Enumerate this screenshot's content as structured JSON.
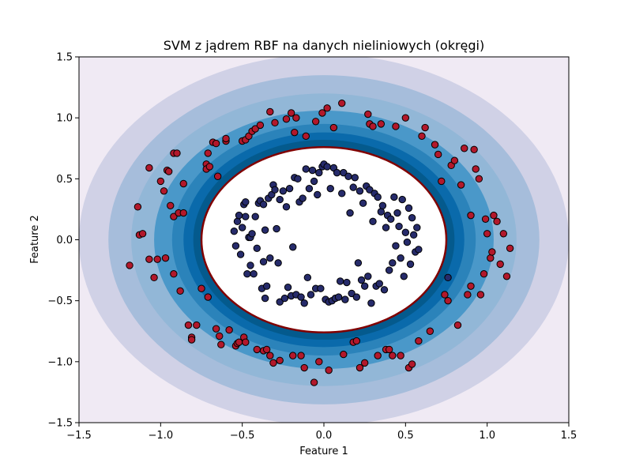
{
  "chart_data": {
    "type": "scatter",
    "title": "SVM z jądrem RBF na danych nieliniowych (okręgi)",
    "xlabel": "Feature 1",
    "ylabel": "Feature 2",
    "xlim": [
      -1.5,
      1.5
    ],
    "ylim": [
      -1.5,
      1.5
    ],
    "xticks": [
      "−1.5",
      "−1.0",
      "−0.5",
      "0.0",
      "0.5",
      "1.0",
      "1.5"
    ],
    "yticks": [
      "−1.5",
      "−1.0",
      "−0.5",
      "0.0",
      "0.5",
      "1.0",
      "1.5"
    ],
    "grid": false,
    "decision_boundary": {
      "cx": 0.0,
      "cy": 0.0,
      "rx": 0.75,
      "ry": 0.76,
      "color": "#800000"
    },
    "contour_levels": [
      {
        "rx": 1.55,
        "ry": 1.57,
        "color": "#f0eaf4"
      },
      {
        "rx": 1.5,
        "ry": 1.52,
        "color": "#d0d1e6"
      },
      {
        "rx": 1.32,
        "ry": 1.35,
        "color": "#a6bddb"
      },
      {
        "rx": 1.18,
        "ry": 1.2,
        "color": "#92b7d7"
      },
      {
        "rx": 1.04,
        "ry": 1.06,
        "color": "#4a98c9"
      },
      {
        "rx": 0.93,
        "ry": 0.95,
        "color": "#2b83ba"
      },
      {
        "rx": 0.86,
        "ry": 0.88,
        "color": "#0a6aab"
      },
      {
        "rx": 0.8,
        "ry": 0.82,
        "color": "#045a8d"
      },
      {
        "rx": 0.75,
        "ry": 0.76,
        "color": "#ffffff"
      }
    ],
    "series": [
      {
        "class": "outer",
        "color": "#b2182b",
        "points": [
          [
            -1.19,
            -0.21
          ],
          [
            -1.14,
            0.27
          ],
          [
            -1.13,
            0.04
          ],
          [
            -1.11,
            0.05
          ],
          [
            -1.07,
            0.59
          ],
          [
            -1.07,
            -0.16
          ],
          [
            -1.04,
            -0.31
          ],
          [
            -1.02,
            -0.16
          ],
          [
            -1.0,
            0.48
          ],
          [
            -0.98,
            0.4
          ],
          [
            -0.97,
            -0.15
          ],
          [
            -0.96,
            0.57
          ],
          [
            -0.95,
            0.56
          ],
          [
            -0.94,
            0.28
          ],
          [
            -0.92,
            0.19
          ],
          [
            -0.92,
            0.71
          ],
          [
            -0.92,
            -0.28
          ],
          [
            -0.9,
            0.71
          ],
          [
            -0.89,
            0.22
          ],
          [
            -0.88,
            -0.42
          ],
          [
            -0.86,
            0.22
          ],
          [
            -0.86,
            0.46
          ],
          [
            -0.83,
            -0.7
          ],
          [
            -0.81,
            -0.8
          ],
          [
            -0.81,
            -0.82
          ],
          [
            -0.78,
            -0.7
          ],
          [
            -0.75,
            -0.4
          ],
          [
            -0.72,
            0.62
          ],
          [
            -0.72,
            0.58
          ],
          [
            -0.71,
            -0.47
          ],
          [
            -0.71,
            0.71
          ],
          [
            -0.7,
            0.6
          ],
          [
            -0.68,
            0.8
          ],
          [
            -0.66,
            0.79
          ],
          [
            -0.66,
            -0.73
          ],
          [
            -0.65,
            0.52
          ],
          [
            -0.64,
            -0.79
          ],
          [
            -0.63,
            -0.86
          ],
          [
            -0.6,
            0.81
          ],
          [
            -0.6,
            0.83
          ],
          [
            -0.58,
            -0.74
          ],
          [
            -0.54,
            -0.87
          ],
          [
            -0.53,
            -0.85
          ],
          [
            -0.52,
            -0.84
          ],
          [
            -0.5,
            0.81
          ],
          [
            -0.49,
            -0.8
          ],
          [
            -0.48,
            0.82
          ],
          [
            -0.48,
            -0.84
          ],
          [
            -0.46,
            0.85
          ],
          [
            -0.44,
            0.89
          ],
          [
            -0.42,
            0.91
          ],
          [
            -0.41,
            -0.9
          ],
          [
            -0.39,
            0.94
          ],
          [
            -0.37,
            -0.91
          ],
          [
            -0.35,
            -0.9
          ],
          [
            -0.33,
            -0.95
          ],
          [
            -0.33,
            1.05
          ],
          [
            -0.31,
            -1.01
          ],
          [
            -0.3,
            0.96
          ],
          [
            -0.27,
            -0.99
          ],
          [
            -0.23,
            0.99
          ],
          [
            -0.2,
            1.04
          ],
          [
            -0.19,
            -0.95
          ],
          [
            -0.18,
            0.88
          ],
          [
            -0.17,
            1.0
          ],
          [
            -0.14,
            -0.95
          ],
          [
            -0.12,
            -1.05
          ],
          [
            -0.11,
            0.85
          ],
          [
            -0.06,
            -1.17
          ],
          [
            -0.05,
            0.97
          ],
          [
            -0.03,
            -1.0
          ],
          [
            -0.01,
            1.04
          ],
          [
            0.02,
            1.08
          ],
          [
            0.03,
            -1.07
          ],
          [
            0.06,
            0.92
          ],
          [
            0.11,
            1.12
          ],
          [
            0.12,
            -0.94
          ],
          [
            0.18,
            -0.84
          ],
          [
            0.2,
            -0.83
          ],
          [
            0.22,
            -1.05
          ],
          [
            0.25,
            -1.01
          ],
          [
            0.27,
            1.03
          ],
          [
            0.28,
            0.95
          ],
          [
            0.3,
            0.93
          ],
          [
            0.33,
            -0.95
          ],
          [
            0.35,
            0.95
          ],
          [
            0.38,
            -0.9
          ],
          [
            0.4,
            -0.9
          ],
          [
            0.42,
            -0.95
          ],
          [
            0.44,
            0.93
          ],
          [
            0.47,
            -0.95
          ],
          [
            0.5,
            1.0
          ],
          [
            0.52,
            -1.05
          ],
          [
            0.54,
            -1.02
          ],
          [
            0.58,
            -0.83
          ],
          [
            0.6,
            0.85
          ],
          [
            0.62,
            0.92
          ],
          [
            0.65,
            -0.75
          ],
          [
            0.68,
            0.78
          ],
          [
            0.7,
            0.7
          ],
          [
            0.72,
            0.48
          ],
          [
            0.74,
            -0.45
          ],
          [
            0.76,
            -0.5
          ],
          [
            0.78,
            0.61
          ],
          [
            0.8,
            0.65
          ],
          [
            0.82,
            -0.7
          ],
          [
            0.84,
            0.45
          ],
          [
            0.86,
            0.75
          ],
          [
            0.88,
            -0.45
          ],
          [
            0.9,
            -0.38
          ],
          [
            0.9,
            0.2
          ],
          [
            0.92,
            0.74
          ],
          [
            0.93,
            0.58
          ],
          [
            0.95,
            0.5
          ],
          [
            0.96,
            -0.45
          ],
          [
            0.98,
            -0.28
          ],
          [
            0.99,
            0.17
          ],
          [
            1.0,
            0.05
          ],
          [
            1.02,
            -0.15
          ],
          [
            1.03,
            -0.1
          ],
          [
            1.04,
            0.2
          ],
          [
            1.06,
            0.15
          ],
          [
            1.08,
            -0.2
          ],
          [
            1.1,
            0.05
          ],
          [
            1.12,
            -0.3
          ],
          [
            1.14,
            -0.07
          ]
        ]
      },
      {
        "class": "inner",
        "color": "#262b6b",
        "points": [
          [
            -0.55,
            0.07
          ],
          [
            -0.54,
            -0.05
          ],
          [
            -0.53,
            0.15
          ],
          [
            -0.52,
            0.2
          ],
          [
            -0.51,
            -0.12
          ],
          [
            -0.5,
            0.1
          ],
          [
            -0.49,
            0.29
          ],
          [
            -0.48,
            0.31
          ],
          [
            -0.48,
            0.19
          ],
          [
            -0.47,
            -0.28
          ],
          [
            -0.46,
            0.02
          ],
          [
            -0.45,
            -0.21
          ],
          [
            -0.45,
            0.02
          ],
          [
            -0.44,
            0.05
          ],
          [
            -0.43,
            -0.28
          ],
          [
            -0.42,
            0.19
          ],
          [
            -0.41,
            -0.07
          ],
          [
            -0.4,
            0.3
          ],
          [
            -0.39,
            0.32
          ],
          [
            -0.38,
            -0.4
          ],
          [
            -0.37,
            0.29
          ],
          [
            -0.37,
            -0.18
          ],
          [
            -0.36,
            -0.48
          ],
          [
            -0.36,
            0.08
          ],
          [
            -0.35,
            -0.38
          ],
          [
            -0.34,
            0.34
          ],
          [
            -0.33,
            -0.15
          ],
          [
            -0.32,
            0.37
          ],
          [
            -0.31,
            0.45
          ],
          [
            -0.3,
            0.41
          ],
          [
            -0.29,
            0.09
          ],
          [
            -0.28,
            -0.19
          ],
          [
            -0.27,
            -0.51
          ],
          [
            -0.27,
            0.33
          ],
          [
            -0.25,
            0.4
          ],
          [
            -0.24,
            -0.48
          ],
          [
            -0.23,
            0.27
          ],
          [
            -0.22,
            -0.39
          ],
          [
            -0.21,
            0.42
          ],
          [
            -0.2,
            -0.46
          ],
          [
            -0.19,
            -0.06
          ],
          [
            -0.18,
            0.51
          ],
          [
            -0.17,
            -0.45
          ],
          [
            -0.16,
            0.5
          ],
          [
            -0.15,
            0.31
          ],
          [
            -0.14,
            -0.47
          ],
          [
            -0.13,
            0.34
          ],
          [
            -0.12,
            -0.52
          ],
          [
            -0.11,
            0.58
          ],
          [
            -0.1,
            -0.31
          ],
          [
            -0.09,
            0.42
          ],
          [
            -0.08,
            -0.45
          ],
          [
            -0.07,
            0.57
          ],
          [
            -0.06,
            0.48
          ],
          [
            -0.05,
            -0.4
          ],
          [
            -0.04,
            0.37
          ],
          [
            -0.03,
            0.55
          ],
          [
            -0.02,
            -0.4
          ],
          [
            -0.01,
            0.6
          ],
          [
            0.0,
            0.62
          ],
          [
            0.01,
            -0.49
          ],
          [
            0.02,
            0.6
          ],
          [
            0.03,
            -0.51
          ],
          [
            0.04,
            0.42
          ],
          [
            0.05,
            -0.5
          ],
          [
            0.06,
            0.59
          ],
          [
            0.07,
            -0.48
          ],
          [
            0.08,
            0.55
          ],
          [
            0.09,
            -0.47
          ],
          [
            0.1,
            -0.34
          ],
          [
            0.11,
            0.38
          ],
          [
            0.12,
            0.55
          ],
          [
            0.13,
            -0.49
          ],
          [
            0.14,
            -0.35
          ],
          [
            0.15,
            0.52
          ],
          [
            0.16,
            0.22
          ],
          [
            0.17,
            -0.44
          ],
          [
            0.18,
            0.43
          ],
          [
            0.19,
            0.51
          ],
          [
            0.2,
            -0.47
          ],
          [
            0.21,
            -0.19
          ],
          [
            0.22,
            0.4
          ],
          [
            0.23,
            -0.33
          ],
          [
            0.24,
            0.3
          ],
          [
            0.25,
            -0.38
          ],
          [
            0.26,
            0.44
          ],
          [
            0.27,
            -0.3
          ],
          [
            0.28,
            0.41
          ],
          [
            0.29,
            -0.52
          ],
          [
            0.3,
            0.15
          ],
          [
            0.31,
            0.38
          ],
          [
            0.32,
            -0.38
          ],
          [
            0.33,
            0.35
          ],
          [
            0.34,
            -0.36
          ],
          [
            0.35,
            0.23
          ],
          [
            0.36,
            0.28
          ],
          [
            0.37,
            -0.41
          ],
          [
            0.38,
            0.1
          ],
          [
            0.39,
            0.2
          ],
          [
            0.4,
            -0.25
          ],
          [
            0.41,
            0.17
          ],
          [
            0.42,
            -0.19
          ],
          [
            0.43,
            0.35
          ],
          [
            0.44,
            -0.05
          ],
          [
            0.45,
            0.22
          ],
          [
            0.46,
            0.11
          ],
          [
            0.47,
            -0.15
          ],
          [
            0.48,
            0.33
          ],
          [
            0.49,
            -0.3
          ],
          [
            0.5,
            0.06
          ],
          [
            0.51,
            -0.02
          ],
          [
            0.52,
            0.26
          ],
          [
            0.53,
            -0.2
          ],
          [
            0.54,
            0.18
          ],
          [
            0.55,
            0.04
          ],
          [
            0.56,
            -0.1
          ],
          [
            0.57,
            0.1
          ],
          [
            0.58,
            -0.08
          ],
          [
            0.76,
            -0.31
          ]
        ]
      }
    ]
  }
}
